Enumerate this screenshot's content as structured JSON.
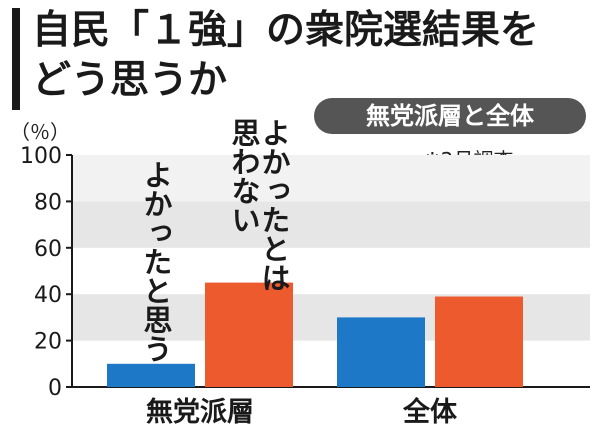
{
  "title_lines": [
    "自民「１強」の衆院選結果を",
    "どう思うか"
  ],
  "badge": "無党派層と全体",
  "note": "※2月調査",
  "chart_data": {
    "type": "bar",
    "categories": [
      "無党派層",
      "全体"
    ],
    "series": [
      {
        "name": "よかったと思う",
        "values": [
          10,
          30
        ],
        "color": "#1e78c8"
      },
      {
        "name": "よかったとは思わない",
        "values": [
          45,
          39
        ],
        "color": "#ec5a2e"
      }
    ],
    "series_label_columns": [
      [
        "よかったと思う"
      ],
      [
        "思わない",
        "よかったとは"
      ]
    ],
    "ylabel": "（％）",
    "ylim": [
      0,
      100
    ],
    "yticks": [
      0,
      20,
      40,
      60,
      80,
      100
    ],
    "grid": "alternating horizontal bands",
    "band_color": "#e6e6e6"
  }
}
